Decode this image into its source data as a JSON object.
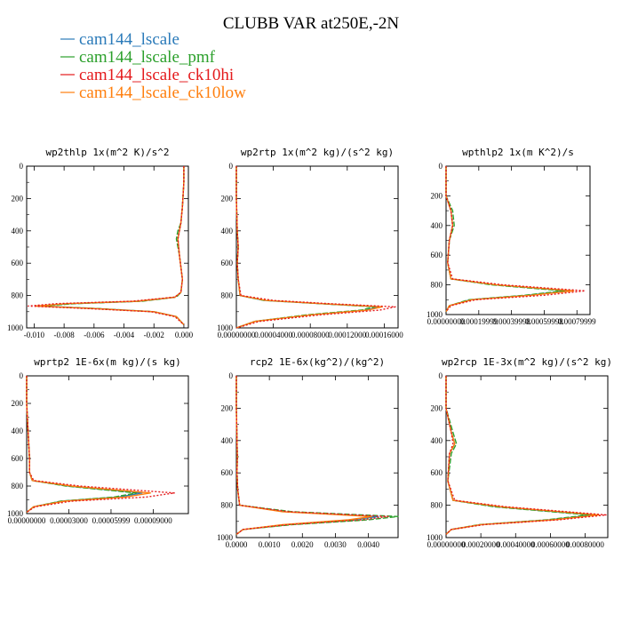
{
  "title": "CLUBB VAR at250E,-2N",
  "colors": {
    "cam144_lscale": "#2a7ab9",
    "cam144_lscale_pmf": "#2ca02c",
    "cam144_lscale_ck10hi": "#e41a1c",
    "cam144_lscale_ck10low": "#ff7f0e"
  },
  "legend": [
    {
      "name": "cam144_lscale",
      "color": "#2a7ab9"
    },
    {
      "name": "cam144_lscale_pmf",
      "color": "#2ca02c"
    },
    {
      "name": "cam144_lscale_ck10hi",
      "color": "#e41a1c"
    },
    {
      "name": "cam144_lscale_ck10low",
      "color": "#ff7f0e"
    }
  ],
  "chart_data": [
    {
      "type": "line",
      "title": "wp2thlp  1x(m^2 K)/s^2",
      "xlim": [
        -0.0105,
        0.0003
      ],
      "ylim": [
        0,
        1000
      ],
      "yreversed": true,
      "xticks": [
        -0.01,
        -0.008,
        -0.006,
        -0.004,
        -0.002,
        0.0
      ],
      "xtick_labels": [
        "-0.010",
        "-0.008",
        "-0.006",
        "-0.004",
        "-0.002",
        "0.000"
      ],
      "yticks": [
        0,
        200,
        400,
        600,
        800,
        1000
      ],
      "series": [
        {
          "name": "cam144_lscale",
          "x": [
            0,
            0,
            -0.0001,
            -0.0002,
            -0.0003,
            -0.0004,
            -0.0003,
            -0.0001,
            -0.0002,
            -0.0006,
            -0.003,
            -0.0075,
            -0.0098,
            -0.006,
            -0.002,
            -0.0005,
            0
          ],
          "y": [
            0,
            100,
            250,
            350,
            400,
            450,
            550,
            700,
            780,
            810,
            835,
            850,
            865,
            880,
            900,
            930,
            980
          ]
        },
        {
          "name": "cam144_lscale_pmf",
          "x": [
            0,
            0,
            -0.0001,
            -0.0002,
            -0.0004,
            -0.0005,
            -0.0003,
            -0.0001,
            -0.0002,
            -0.0005,
            -0.0028,
            -0.0072,
            -0.0096,
            -0.0058,
            -0.002,
            -0.0005,
            0
          ],
          "y": [
            0,
            100,
            250,
            350,
            400,
            450,
            550,
            700,
            780,
            810,
            835,
            850,
            865,
            880,
            900,
            930,
            980
          ]
        },
        {
          "name": "cam144_lscale_ck10hi",
          "x": [
            0,
            0,
            -0.0001,
            -0.0002,
            -0.0003,
            -0.0004,
            -0.0003,
            -0.0001,
            -0.0002,
            -0.0006,
            -0.0035,
            -0.0085,
            -0.0104,
            -0.0065,
            -0.0022,
            -0.0006,
            0
          ],
          "y": [
            0,
            100,
            250,
            350,
            400,
            450,
            550,
            700,
            780,
            810,
            835,
            850,
            865,
            880,
            900,
            930,
            980
          ]
        },
        {
          "name": "cam144_lscale_ck10low",
          "x": [
            0,
            0,
            -0.0001,
            -0.0002,
            -0.0003,
            -0.0004,
            -0.0003,
            -0.0001,
            -0.0002,
            -0.0006,
            -0.0031,
            -0.0078,
            -0.0099,
            -0.0061,
            -0.002,
            -0.0005,
            0
          ],
          "y": [
            0,
            100,
            250,
            350,
            400,
            450,
            550,
            700,
            780,
            810,
            835,
            850,
            865,
            880,
            900,
            930,
            980
          ]
        }
      ]
    },
    {
      "type": "line",
      "title": "wp2rtp  1x(m^2 kg)/(s^2 kg)",
      "xlim": [
        0,
        0.000175
      ],
      "ylim": [
        0,
        1000
      ],
      "yreversed": true,
      "xticks": [
        0,
        4e-05,
        8e-05,
        0.00012,
        0.00016
      ],
      "xtick_labels": [
        "0.00000000",
        "0.00004000",
        "0.00008000",
        "0.00012000",
        "0.00016000"
      ],
      "yticks": [
        0,
        200,
        400,
        600,
        800,
        1000
      ],
      "series": [
        {
          "name": "cam144_lscale",
          "x": [
            0,
            0,
            1e-06,
            2e-06,
            1e-06,
            2e-06,
            4e-06,
            3e-05,
            9e-05,
            0.000155,
            0.00014,
            8e-05,
            2e-05,
            0
          ],
          "y": [
            0,
            200,
            400,
            500,
            600,
            700,
            800,
            830,
            850,
            870,
            890,
            920,
            960,
            1000
          ]
        },
        {
          "name": "cam144_lscale_pmf",
          "x": [
            0,
            0,
            1e-06,
            2e-06,
            1e-06,
            2e-06,
            4e-06,
            3e-05,
            9e-05,
            0.00015,
            0.000135,
            7.5e-05,
            2e-05,
            0
          ],
          "y": [
            0,
            200,
            400,
            500,
            600,
            700,
            800,
            830,
            850,
            870,
            890,
            920,
            960,
            1000
          ]
        },
        {
          "name": "cam144_lscale_ck10hi",
          "x": [
            0,
            0,
            1e-06,
            2e-06,
            1e-06,
            2e-06,
            5e-06,
            4e-05,
            0.0001,
            0.000172,
            0.000155,
            9e-05,
            2.5e-05,
            0
          ],
          "y": [
            0,
            200,
            400,
            500,
            600,
            700,
            800,
            830,
            850,
            870,
            890,
            920,
            960,
            1000
          ]
        },
        {
          "name": "cam144_lscale_ck10low",
          "x": [
            0,
            0,
            1e-06,
            2e-06,
            1e-06,
            2e-06,
            4e-06,
            3.2e-05,
            9.2e-05,
            0.000158,
            0.000142,
            8e-05,
            2e-05,
            0
          ],
          "y": [
            0,
            200,
            400,
            500,
            600,
            700,
            800,
            830,
            850,
            870,
            890,
            920,
            960,
            1000
          ]
        }
      ]
    },
    {
      "type": "line",
      "title": "wpthlp2  1x(m K^2)/s",
      "xlim": [
        0,
        0.00088
      ],
      "ylim": [
        0,
        1000
      ],
      "yreversed": true,
      "xticks": [
        0,
        0.0002,
        0.0004,
        0.0006,
        0.0008
      ],
      "xtick_labels": [
        "0.00000000",
        "0.00019999",
        "0.00039998",
        "0.00059998",
        "0.00079999"
      ],
      "yticks": [
        0,
        200,
        400,
        600,
        800,
        1000
      ],
      "series": [
        {
          "name": "cam144_lscale",
          "x": [
            0,
            0,
            3e-05,
            4e-05,
            2e-05,
            1e-05,
            3e-05,
            0.0003,
            0.00075,
            0.0005,
            0.00015,
            2e-05,
            0
          ],
          "y": [
            0,
            200,
            300,
            400,
            500,
            650,
            760,
            800,
            840,
            870,
            900,
            940,
            980
          ]
        },
        {
          "name": "cam144_lscale_pmf",
          "x": [
            0,
            0,
            4e-05,
            5e-05,
            2e-05,
            1e-05,
            3e-05,
            0.00028,
            0.00072,
            0.00048,
            0.00014,
            2e-05,
            0
          ],
          "y": [
            0,
            200,
            300,
            400,
            500,
            650,
            760,
            800,
            840,
            870,
            900,
            940,
            980
          ]
        },
        {
          "name": "cam144_lscale_ck10hi",
          "x": [
            0,
            0,
            3e-05,
            4e-05,
            2e-05,
            1e-05,
            4e-05,
            0.00035,
            0.00085,
            0.0006,
            0.00018,
            3e-05,
            0
          ],
          "y": [
            0,
            200,
            300,
            400,
            500,
            650,
            760,
            800,
            840,
            870,
            900,
            940,
            980
          ]
        },
        {
          "name": "cam144_lscale_ck10low",
          "x": [
            0,
            0,
            3e-05,
            4e-05,
            2e-05,
            1e-05,
            3e-05,
            0.00031,
            0.00078,
            0.00052,
            0.00016,
            2e-05,
            0
          ],
          "y": [
            0,
            200,
            300,
            400,
            500,
            650,
            760,
            800,
            840,
            870,
            900,
            940,
            980
          ]
        }
      ]
    },
    {
      "type": "line",
      "title": "wprtp2  1E-6x(m kg)/(s kg)",
      "xlim": [
        0,
        0.000115
      ],
      "ylim": [
        0,
        1000
      ],
      "yreversed": true,
      "xticks": [
        0,
        3e-05,
        6e-05,
        9e-05
      ],
      "xtick_labels": [
        "0.00000000",
        "0.00003000",
        "0.00005999",
        "0.00009000"
      ],
      "yticks": [
        0,
        200,
        400,
        600,
        800,
        1000
      ],
      "series": [
        {
          "name": "cam144_lscale",
          "x": [
            0,
            0,
            1e-06,
            2e-06,
            2e-06,
            4e-06,
            3e-05,
            8.2e-05,
            6.5e-05,
            2.5e-05,
            5e-06,
            0
          ],
          "y": [
            0,
            200,
            400,
            600,
            700,
            760,
            800,
            850,
            880,
            910,
            950,
            990
          ]
        },
        {
          "name": "cam144_lscale_pmf",
          "x": [
            0,
            0,
            1e-06,
            2e-06,
            2e-06,
            4e-06,
            2.8e-05,
            7.8e-05,
            6.2e-05,
            2.4e-05,
            5e-06,
            0
          ],
          "y": [
            0,
            200,
            400,
            600,
            700,
            760,
            800,
            850,
            880,
            910,
            950,
            990
          ]
        },
        {
          "name": "cam144_lscale_ck10hi",
          "x": [
            0,
            0,
            1e-06,
            2e-06,
            2e-06,
            5e-06,
            3.8e-05,
            0.000105,
            8.5e-05,
            3.2e-05,
            6e-06,
            0
          ],
          "y": [
            0,
            200,
            400,
            600,
            700,
            760,
            800,
            850,
            880,
            910,
            950,
            990
          ]
        },
        {
          "name": "cam144_lscale_ck10low",
          "x": [
            0,
            0,
            1e-06,
            2e-06,
            2e-06,
            4e-06,
            3.2e-05,
            8.8e-05,
            7e-05,
            2.7e-05,
            5e-06,
            0
          ],
          "y": [
            0,
            200,
            400,
            600,
            700,
            760,
            800,
            850,
            880,
            910,
            950,
            990
          ]
        }
      ]
    },
    {
      "type": "line",
      "title": "rcp2  1E-6x(kg^2)/(kg^2)",
      "xlim": [
        0,
        0.0049
      ],
      "ylim": [
        0,
        1000
      ],
      "yreversed": true,
      "xticks": [
        0,
        0.001,
        0.002,
        0.003,
        0.004
      ],
      "xtick_labels": [
        "0.0000",
        "0.0010",
        "0.0020",
        "0.0030",
        "0.0040"
      ],
      "yticks": [
        0,
        200,
        400,
        600,
        800,
        1000
      ],
      "series": [
        {
          "name": "cam144_lscale",
          "x": [
            0,
            0,
            2e-05,
            3e-05,
            2e-05,
            4e-05,
            0.0001,
            0.0015,
            0.0043,
            0.0035,
            0.0015,
            0.0002,
            0
          ],
          "y": [
            0,
            200,
            400,
            500,
            600,
            700,
            800,
            840,
            870,
            890,
            920,
            950,
            980
          ]
        },
        {
          "name": "cam144_lscale_pmf",
          "x": [
            0,
            0,
            2e-05,
            3e-05,
            2e-05,
            4e-05,
            0.0001,
            0.0017,
            0.0049,
            0.004,
            0.0017,
            0.0002,
            0
          ],
          "y": [
            0,
            200,
            400,
            500,
            600,
            700,
            800,
            840,
            870,
            890,
            920,
            950,
            980
          ]
        },
        {
          "name": "cam144_lscale_ck10hi",
          "x": [
            0,
            0,
            2e-05,
            3e-05,
            2e-05,
            4e-05,
            0.0001,
            0.0016,
            0.0046,
            0.0038,
            0.0016,
            0.0002,
            0
          ],
          "y": [
            0,
            200,
            400,
            500,
            600,
            700,
            800,
            840,
            870,
            890,
            920,
            950,
            980
          ]
        },
        {
          "name": "cam144_lscale_ck10low",
          "x": [
            0,
            0,
            2e-05,
            3e-05,
            2e-05,
            4e-05,
            0.0001,
            0.0014,
            0.0041,
            0.0034,
            0.0014,
            0.0002,
            0
          ],
          "y": [
            0,
            200,
            400,
            500,
            600,
            700,
            800,
            840,
            870,
            890,
            920,
            950,
            980
          ]
        }
      ]
    },
    {
      "type": "line",
      "title": "wp2rcp  1E-3x(m^2 kg)/(s^2 kg)",
      "xlim": [
        0,
        0.00093
      ],
      "ylim": [
        0,
        1000
      ],
      "yreversed": true,
      "xticks": [
        0,
        0.0002,
        0.0004,
        0.0006,
        0.0008
      ],
      "xtick_labels": [
        "0.00000000",
        "0.00020000",
        "0.00040000",
        "0.00060000",
        "0.00080000"
      ],
      "yticks": [
        0,
        200,
        400,
        600,
        800,
        1000
      ],
      "series": [
        {
          "name": "cam144_lscale",
          "x": [
            0,
            0,
            3e-05,
            5e-05,
            2e-05,
            1e-05,
            4e-05,
            0.0003,
            0.00085,
            0.0006,
            0.0002,
            3e-05,
            0
          ],
          "y": [
            0,
            200,
            350,
            420,
            480,
            650,
            770,
            810,
            860,
            890,
            920,
            950,
            980
          ]
        },
        {
          "name": "cam144_lscale_pmf",
          "x": [
            0,
            0,
            4e-05,
            6e-05,
            3e-05,
            1e-05,
            4e-05,
            0.00028,
            0.00082,
            0.00058,
            0.00019,
            3e-05,
            0
          ],
          "y": [
            0,
            200,
            350,
            420,
            480,
            650,
            770,
            810,
            860,
            890,
            920,
            950,
            980
          ]
        },
        {
          "name": "cam144_lscale_ck10hi",
          "x": [
            0,
            0,
            3e-05,
            4e-05,
            2e-05,
            1e-05,
            5e-05,
            0.00035,
            0.00092,
            0.00065,
            0.00022,
            3e-05,
            0
          ],
          "y": [
            0,
            200,
            350,
            420,
            480,
            650,
            770,
            810,
            860,
            890,
            920,
            950,
            980
          ]
        },
        {
          "name": "cam144_lscale_ck10low",
          "x": [
            0,
            0,
            3e-05,
            5e-05,
            2e-05,
            1e-05,
            4e-05,
            0.00032,
            0.00088,
            0.00062,
            0.0002,
            3e-05,
            0
          ],
          "y": [
            0,
            200,
            350,
            420,
            480,
            650,
            770,
            810,
            860,
            890,
            920,
            950,
            980
          ]
        }
      ]
    }
  ]
}
